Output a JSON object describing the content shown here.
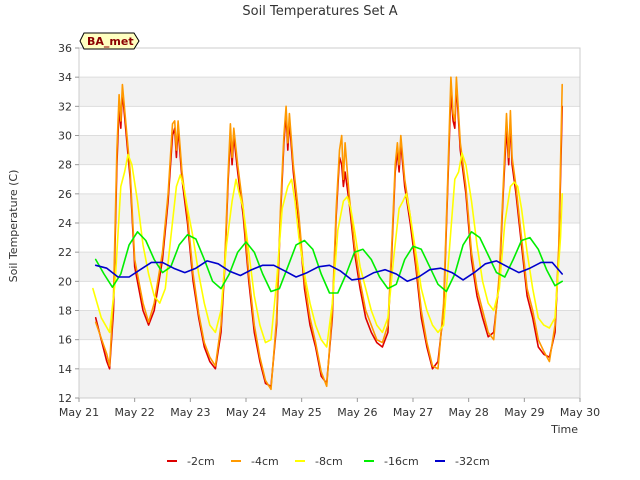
{
  "chart_data": {
    "type": "line",
    "title": "Soil Temperatures Set A",
    "xlabel": "Time",
    "ylabel": "Soil Temperature (C)",
    "badge": "BA_met",
    "xlim": [
      21,
      30
    ],
    "ylim": [
      12,
      36
    ],
    "x_ticks": [
      21,
      22,
      23,
      24,
      25,
      26,
      27,
      28,
      29,
      30
    ],
    "x_tick_labels": [
      "May 21",
      "May 22",
      "May 23",
      "May 24",
      "May 25",
      "May 26",
      "May 27",
      "May 28",
      "May 29",
      "May 30"
    ],
    "y_ticks": [
      12,
      14,
      16,
      18,
      20,
      22,
      24,
      26,
      28,
      30,
      32,
      34,
      36
    ],
    "y_tick_labels": [
      "12",
      "14",
      "16",
      "18",
      "20",
      "22",
      "24",
      "26",
      "28",
      "30",
      "32",
      "34",
      "36"
    ],
    "grid": "horizontal bands",
    "legend_position": "bottom",
    "series": [
      {
        "name": "-2cm",
        "color": "#dd0000",
        "x": [
          21.3,
          21.5,
          21.55,
          21.62,
          21.68,
          21.72,
          21.75,
          21.78,
          21.85,
          21.92,
          22.0,
          22.1,
          22.15,
          22.25,
          22.35,
          22.5,
          22.6,
          22.68,
          22.72,
          22.75,
          22.78,
          22.85,
          22.95,
          23.05,
          23.15,
          23.25,
          23.35,
          23.45,
          23.55,
          23.62,
          23.68,
          23.72,
          23.75,
          23.78,
          23.85,
          23.95,
          24.05,
          24.15,
          24.25,
          24.35,
          24.45,
          24.55,
          24.62,
          24.68,
          24.72,
          24.75,
          24.78,
          24.85,
          24.95,
          25.05,
          25.15,
          25.25,
          25.35,
          25.45,
          25.55,
          25.62,
          25.68,
          25.72,
          25.75,
          25.78,
          25.85,
          25.95,
          26.05,
          26.15,
          26.25,
          26.35,
          26.45,
          26.55,
          26.62,
          26.68,
          26.72,
          26.75,
          26.78,
          26.85,
          26.95,
          27.05,
          27.15,
          27.25,
          27.35,
          27.45,
          27.55,
          27.62,
          27.68,
          27.72,
          27.75,
          27.78,
          27.85,
          27.95,
          28.05,
          28.15,
          28.25,
          28.35,
          28.45,
          28.55,
          28.62,
          28.68,
          28.72,
          28.75,
          28.78,
          28.85,
          28.95,
          29.05,
          29.15,
          29.25,
          29.35,
          29.45,
          29.55,
          29.62,
          29.68
        ],
        "y": [
          17.5,
          14.5,
          14.0,
          18.0,
          28.0,
          32.0,
          30.5,
          33.0,
          30.0,
          27.0,
          21.0,
          19.0,
          18.0,
          17.0,
          18.0,
          21.5,
          25.5,
          30.0,
          30.5,
          28.5,
          30.5,
          27.0,
          24.0,
          20.0,
          17.5,
          15.5,
          14.5,
          14.0,
          16.5,
          21.0,
          27.0,
          30.0,
          28.0,
          30.0,
          27.5,
          24.5,
          20.0,
          16.5,
          14.5,
          13.0,
          12.8,
          17.0,
          24.5,
          29.5,
          31.5,
          29.0,
          31.0,
          27.5,
          24.0,
          19.5,
          17.0,
          15.5,
          13.5,
          13.0,
          17.5,
          24.5,
          28.5,
          28.0,
          26.5,
          27.5,
          25.5,
          22.0,
          19.5,
          17.5,
          16.5,
          15.8,
          15.5,
          16.5,
          22.0,
          27.5,
          29.0,
          27.5,
          29.5,
          26.5,
          24.0,
          21.0,
          17.5,
          15.5,
          14.0,
          14.5,
          18.0,
          26.0,
          33.0,
          31.0,
          30.5,
          33.5,
          29.0,
          26.0,
          21.5,
          19.0,
          17.5,
          16.2,
          16.5,
          20.0,
          26.0,
          30.5,
          28.0,
          31.0,
          28.0,
          26.0,
          22.5,
          19.0,
          17.5,
          15.5,
          15.0,
          14.8,
          16.5,
          22.0,
          32.0
        ]
      },
      {
        "name": "-4cm",
        "color": "#ff9900",
        "x": [
          21.3,
          21.5,
          21.55,
          21.62,
          21.68,
          21.72,
          21.75,
          21.78,
          21.85,
          21.92,
          22.0,
          22.1,
          22.15,
          22.25,
          22.35,
          22.5,
          22.6,
          22.68,
          22.72,
          22.75,
          22.78,
          22.85,
          22.95,
          23.05,
          23.15,
          23.25,
          23.35,
          23.45,
          23.55,
          23.62,
          23.68,
          23.72,
          23.75,
          23.78,
          23.85,
          23.95,
          24.05,
          24.15,
          24.25,
          24.35,
          24.45,
          24.55,
          24.62,
          24.68,
          24.72,
          24.75,
          24.78,
          24.85,
          24.95,
          25.05,
          25.15,
          25.25,
          25.35,
          25.45,
          25.55,
          25.62,
          25.68,
          25.72,
          25.75,
          25.78,
          25.85,
          25.95,
          26.05,
          26.15,
          26.25,
          26.35,
          26.45,
          26.55,
          26.62,
          26.68,
          26.72,
          26.75,
          26.78,
          26.85,
          26.95,
          27.05,
          27.15,
          27.25,
          27.35,
          27.45,
          27.55,
          27.62,
          27.68,
          27.72,
          27.75,
          27.78,
          27.85,
          27.95,
          28.05,
          28.15,
          28.25,
          28.35,
          28.45,
          28.55,
          28.62,
          28.68,
          28.72,
          28.75,
          28.78,
          28.85,
          28.95,
          29.05,
          29.15,
          29.25,
          29.35,
          29.45,
          29.55,
          29.62,
          29.68
        ],
        "y": [
          17.2,
          15.0,
          14.2,
          19.0,
          29.0,
          32.8,
          31.0,
          33.5,
          30.5,
          27.5,
          21.5,
          19.5,
          18.5,
          17.2,
          18.5,
          22.0,
          26.0,
          30.8,
          31.0,
          29.0,
          31.0,
          27.5,
          24.5,
          20.5,
          17.8,
          15.8,
          14.8,
          14.2,
          17.0,
          21.5,
          27.5,
          30.8,
          28.5,
          30.5,
          28.0,
          25.0,
          20.5,
          17.0,
          14.8,
          13.2,
          12.6,
          17.5,
          25.0,
          30.0,
          32.0,
          29.5,
          31.5,
          28.0,
          24.5,
          20.0,
          17.5,
          15.8,
          13.8,
          12.8,
          18.0,
          25.0,
          29.0,
          30.0,
          27.0,
          29.5,
          26.0,
          22.5,
          20.0,
          18.0,
          17.0,
          16.0,
          15.8,
          17.0,
          22.5,
          28.0,
          29.5,
          28.0,
          30.0,
          27.0,
          24.5,
          21.5,
          18.0,
          15.8,
          14.2,
          14.0,
          18.5,
          26.5,
          34.0,
          31.5,
          31.0,
          34.0,
          29.5,
          26.5,
          22.0,
          19.5,
          18.0,
          16.5,
          16.0,
          20.5,
          26.5,
          31.5,
          28.5,
          31.7,
          28.5,
          26.5,
          23.0,
          19.5,
          18.0,
          16.0,
          15.2,
          14.5,
          17.0,
          22.5,
          33.5
        ]
      },
      {
        "name": "-8cm",
        "color": "#ffff00",
        "x": [
          21.25,
          21.4,
          21.55,
          21.65,
          21.75,
          21.82,
          21.88,
          21.95,
          22.05,
          22.15,
          22.25,
          22.35,
          22.45,
          22.55,
          22.65,
          22.75,
          22.82,
          22.88,
          22.95,
          23.05,
          23.15,
          23.25,
          23.35,
          23.45,
          23.55,
          23.65,
          23.75,
          23.82,
          23.88,
          23.95,
          24.05,
          24.15,
          24.25,
          24.35,
          24.45,
          24.55,
          24.65,
          24.75,
          24.82,
          24.88,
          24.95,
          25.05,
          25.15,
          25.25,
          25.35,
          25.45,
          25.55,
          25.65,
          25.75,
          25.82,
          25.88,
          25.95,
          26.05,
          26.15,
          26.25,
          26.35,
          26.45,
          26.55,
          26.65,
          26.75,
          26.82,
          26.88,
          26.95,
          27.05,
          27.15,
          27.25,
          27.35,
          27.45,
          27.55,
          27.65,
          27.75,
          27.82,
          27.88,
          27.95,
          28.05,
          28.15,
          28.25,
          28.35,
          28.45,
          28.55,
          28.65,
          28.75,
          28.82,
          28.88,
          28.95,
          29.05,
          29.15,
          29.25,
          29.35,
          29.45,
          29.55,
          29.65,
          29.68
        ],
        "y": [
          19.5,
          17.5,
          16.5,
          20.0,
          26.5,
          27.5,
          28.7,
          28.0,
          25.5,
          22.5,
          20.5,
          19.0,
          18.5,
          19.5,
          23.0,
          26.5,
          27.3,
          26.5,
          25.0,
          23.0,
          20.5,
          18.5,
          17.0,
          16.5,
          18.0,
          22.5,
          25.5,
          27.0,
          26.0,
          25.0,
          22.0,
          19.0,
          17.0,
          15.8,
          16.0,
          20.0,
          25.0,
          26.5,
          27.0,
          25.5,
          23.0,
          20.5,
          18.5,
          17.0,
          16.0,
          15.5,
          18.5,
          23.5,
          25.5,
          25.8,
          25.0,
          23.5,
          21.0,
          19.5,
          18.0,
          17.0,
          16.5,
          17.5,
          21.5,
          25.0,
          25.5,
          26.0,
          24.5,
          22.0,
          19.5,
          18.0,
          17.0,
          16.5,
          17.0,
          22.0,
          27.0,
          27.5,
          28.8,
          28.0,
          25.5,
          22.5,
          20.0,
          18.5,
          18.0,
          19.5,
          24.0,
          26.5,
          26.8,
          26.5,
          25.0,
          22.0,
          19.5,
          17.5,
          17.0,
          16.8,
          17.5,
          23.0,
          26.0
        ]
      },
      {
        "name": "-16cm",
        "color": "#00ee00",
        "x": [
          21.3,
          21.45,
          21.6,
          21.75,
          21.9,
          22.05,
          22.2,
          22.35,
          22.5,
          22.65,
          22.8,
          22.95,
          23.1,
          23.25,
          23.4,
          23.55,
          23.7,
          23.85,
          24.0,
          24.15,
          24.3,
          24.45,
          24.6,
          24.75,
          24.9,
          25.05,
          25.2,
          25.35,
          25.5,
          25.65,
          25.8,
          25.95,
          26.1,
          26.25,
          26.4,
          26.55,
          26.7,
          26.85,
          27.0,
          27.15,
          27.3,
          27.45,
          27.6,
          27.75,
          27.9,
          28.05,
          28.2,
          28.35,
          28.5,
          28.65,
          28.8,
          28.95,
          29.1,
          29.25,
          29.4,
          29.55,
          29.68
        ],
        "y": [
          21.5,
          20.5,
          19.6,
          20.5,
          22.5,
          23.4,
          22.8,
          21.5,
          20.6,
          21.0,
          22.5,
          23.2,
          22.9,
          21.5,
          20.0,
          19.5,
          20.5,
          22.0,
          22.7,
          22.0,
          20.5,
          19.3,
          19.5,
          21.0,
          22.5,
          22.8,
          22.2,
          20.5,
          19.2,
          19.2,
          20.5,
          22.0,
          22.2,
          21.5,
          20.3,
          19.5,
          19.8,
          21.5,
          22.4,
          22.2,
          21.0,
          19.8,
          19.3,
          20.5,
          22.5,
          23.4,
          23.0,
          21.8,
          20.6,
          20.3,
          21.5,
          22.8,
          23.0,
          22.2,
          20.8,
          19.7,
          20.0
        ]
      },
      {
        "name": "-32cm",
        "color": "#0000cc",
        "x": [
          21.3,
          21.5,
          21.7,
          21.9,
          22.1,
          22.3,
          22.5,
          22.7,
          22.9,
          23.1,
          23.3,
          23.5,
          23.7,
          23.9,
          24.1,
          24.3,
          24.5,
          24.7,
          24.9,
          25.1,
          25.3,
          25.5,
          25.7,
          25.9,
          26.1,
          26.3,
          26.5,
          26.7,
          26.9,
          27.1,
          27.3,
          27.5,
          27.7,
          27.9,
          28.1,
          28.3,
          28.5,
          28.7,
          28.9,
          29.1,
          29.3,
          29.5,
          29.68
        ],
        "y": [
          21.1,
          20.9,
          20.3,
          20.3,
          20.8,
          21.3,
          21.3,
          20.9,
          20.6,
          20.9,
          21.4,
          21.2,
          20.7,
          20.4,
          20.8,
          21.1,
          21.1,
          20.7,
          20.3,
          20.6,
          21.0,
          21.1,
          20.7,
          20.1,
          20.2,
          20.6,
          20.8,
          20.5,
          20.0,
          20.3,
          20.8,
          20.9,
          20.6,
          20.1,
          20.6,
          21.2,
          21.4,
          21.0,
          20.6,
          20.9,
          21.3,
          21.3,
          20.5
        ]
      }
    ]
  }
}
